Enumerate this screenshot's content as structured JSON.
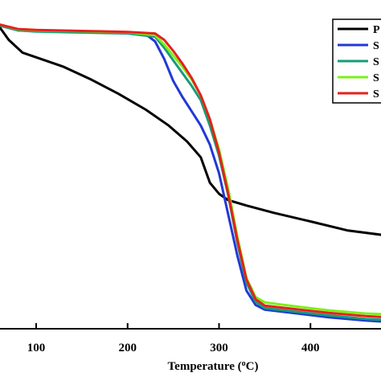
{
  "chart_data": {
    "type": "line",
    "xlabel": "Temperature (°C)",
    "xlabel_parts": [
      "Temperature (",
      "o",
      "C)"
    ],
    "xlim": [
      30,
      520
    ],
    "ylim": [
      0,
      100
    ],
    "x_ticks": [
      100,
      200,
      300,
      400
    ],
    "grid": false,
    "legend_position": "top-right",
    "series": [
      {
        "name": "P",
        "color": "#000000",
        "x": [
          30,
          50,
          60,
          70,
          85,
          100,
          130,
          160,
          190,
          220,
          245,
          265,
          280,
          290,
          300,
          310,
          330,
          360,
          400,
          440,
          480,
          520
        ],
        "y": [
          98,
          97.6,
          95,
          91,
          87,
          85.5,
          82.5,
          78.5,
          74,
          69,
          64,
          59,
          54,
          46,
          42.5,
          40.5,
          38.8,
          36.5,
          33.8,
          31,
          29.5,
          28.8
        ]
      },
      {
        "name": "S",
        "color": "#2238d6",
        "x": [
          30,
          60,
          80,
          100,
          150,
          200,
          220,
          230,
          240,
          250,
          260,
          270,
          280,
          290,
          300,
          310,
          320,
          330,
          340,
          350,
          380,
          420,
          460,
          520
        ],
        "y": [
          97.5,
          95.5,
          94,
          93.7,
          93.4,
          93.1,
          92.7,
          90.5,
          85,
          78,
          73,
          68.5,
          64,
          58,
          49,
          36,
          23,
          12,
          7.5,
          6,
          5,
          3.6,
          2.6,
          1.5
        ]
      },
      {
        "name": "S",
        "color": "#1a9a78",
        "x": [
          30,
          60,
          80,
          100,
          150,
          200,
          230,
          240,
          250,
          260,
          270,
          280,
          290,
          300,
          310,
          320,
          330,
          340,
          350,
          380,
          420,
          460,
          520
        ],
        "y": [
          97.5,
          95.5,
          94,
          93.6,
          93.3,
          93,
          92,
          88.5,
          84.5,
          80.5,
          76.5,
          72,
          64,
          54.5,
          42,
          27,
          14.5,
          8.5,
          6.5,
          5.5,
          4.2,
          3.1,
          2.2
        ]
      },
      {
        "name": "S",
        "color": "#7cf019",
        "x": [
          30,
          60,
          80,
          100,
          150,
          200,
          230,
          240,
          250,
          260,
          270,
          280,
          290,
          300,
          310,
          320,
          330,
          340,
          350,
          380,
          420,
          460,
          520
        ],
        "y": [
          97.5,
          95.8,
          94.3,
          94,
          93.7,
          93.4,
          92.5,
          89.5,
          86,
          82.5,
          78.5,
          73.5,
          66,
          56.5,
          44,
          29,
          16,
          10,
          8.3,
          7.2,
          5.8,
          4.8,
          4.1
        ]
      },
      {
        "name": "S",
        "color": "#e6211c",
        "x": [
          30,
          60,
          80,
          100,
          150,
          200,
          230,
          240,
          250,
          260,
          270,
          280,
          290,
          300,
          310,
          320,
          330,
          340,
          350,
          380,
          420,
          460,
          520
        ],
        "y": [
          97.5,
          95.8,
          94.4,
          94.1,
          93.8,
          93.5,
          93,
          91,
          87.5,
          83.5,
          79,
          73.5,
          66,
          55.5,
          42.5,
          28,
          15.5,
          9.3,
          7.3,
          6.3,
          5,
          4,
          3
        ]
      }
    ]
  }
}
